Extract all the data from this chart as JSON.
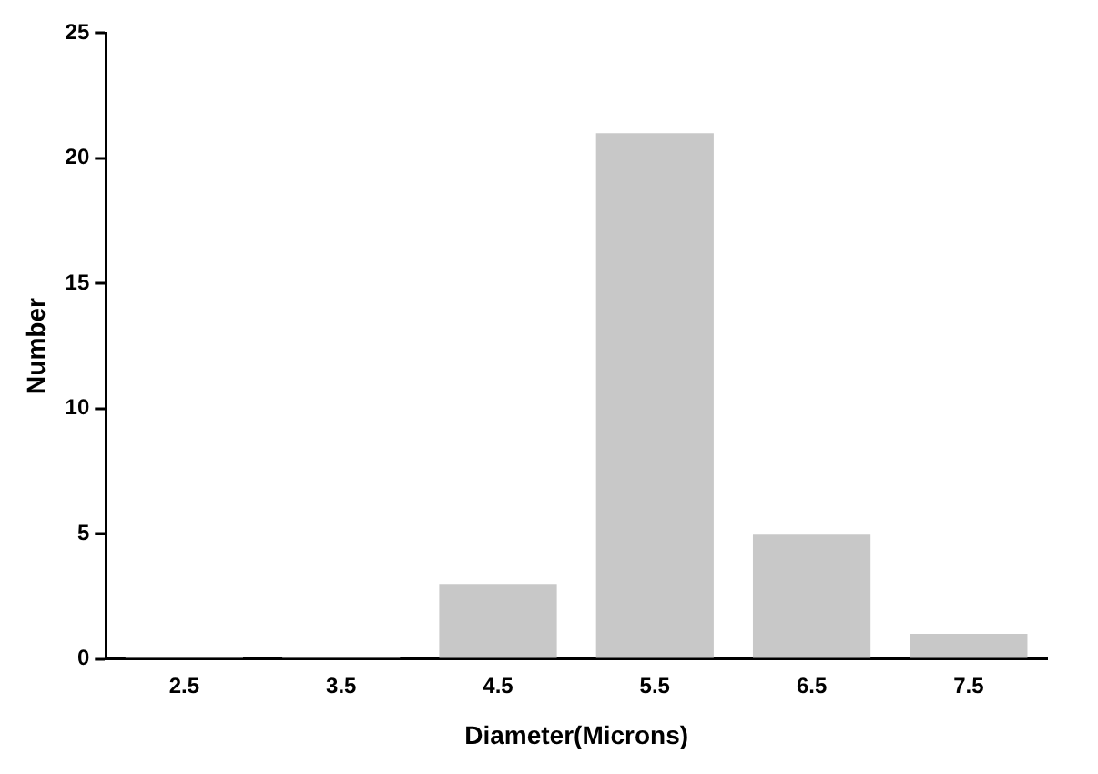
{
  "chart_data": {
    "type": "bar",
    "xlabel": "Diameter(Microns)",
    "ylabel": "Number",
    "categories": [
      "2.5",
      "3.5",
      "4.5",
      "5.5",
      "6.5",
      "7.5"
    ],
    "values": [
      0,
      0,
      3,
      21,
      5,
      1
    ],
    "color": "#c8c8c8",
    "ylim": [
      0,
      25
    ],
    "yticks": [
      0,
      5,
      10,
      15,
      20,
      25
    ],
    "grid": false,
    "legend": false
  }
}
